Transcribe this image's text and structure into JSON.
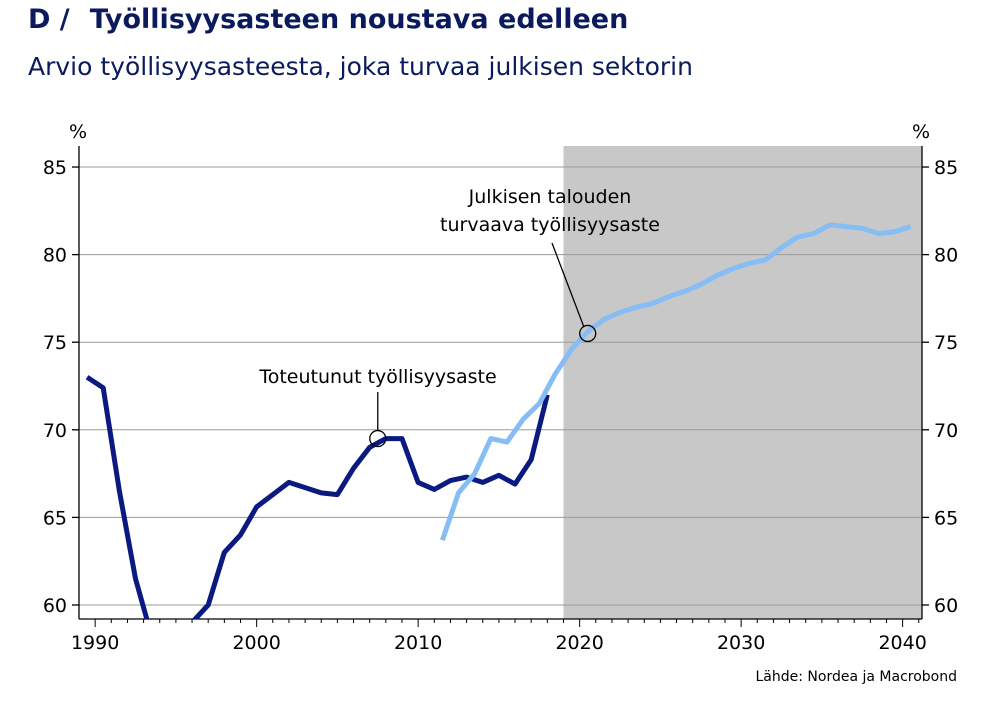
{
  "header": {
    "prefix": "D /",
    "title": "Työllisyysasteen noustava edelleen",
    "subtitle": "Arvio työllisyysasteesta, joka turvaa julkisen sektorin"
  },
  "source": "Lähde: Nordea ja Macrobond",
  "chart_data": {
    "type": "line",
    "ylabel_left": "%",
    "ylabel_right": "%",
    "ylim": [
      59.2,
      86.2
    ],
    "xlim": [
      1989,
      2041.2
    ],
    "y_ticks": [
      60,
      65,
      70,
      75,
      80,
      85
    ],
    "x_ticks": [
      1990,
      2000,
      2010,
      2020,
      2030,
      2040
    ],
    "grid": true,
    "forecast_shading": {
      "from": 2019,
      "to": 2041.2,
      "color": "#c8c8c8"
    },
    "series": [
      {
        "color": "#0a1a80",
        "x": [
          1989.5,
          1990.5,
          1991.5,
          1992.5,
          1993.5,
          1994,
          1995,
          1996,
          1997,
          1998,
          1999,
          2000,
          2001,
          2002,
          2003,
          2004,
          2005,
          2006,
          2007,
          2008,
          2009,
          2010,
          2011,
          2012,
          2013,
          2014,
          2015,
          2016,
          2017,
          2018
        ],
        "y": [
          73.0,
          72.4,
          66.5,
          61.5,
          58.2,
          58.0,
          58.9,
          59.0,
          60.0,
          63.0,
          64.0,
          65.6,
          66.3,
          67.0,
          66.7,
          66.4,
          66.3,
          67.8,
          69.0,
          69.5,
          69.5,
          67.0,
          66.6,
          67.1,
          67.3,
          67.0,
          67.4,
          66.9,
          68.3,
          72.0
        ]
      },
      {
        "color": "#86bdf5",
        "x": [
          2011.5,
          2012.5,
          2013.5,
          2014.5,
          2015.5,
          2016.5,
          2017.5,
          2018.5,
          2019.5,
          2020.5,
          2021.5,
          2022.5,
          2023.5,
          2024.5,
          2025.5,
          2026.5,
          2027.5,
          2028.5,
          2029.5,
          2030.5,
          2031.5,
          2032.5,
          2033.5,
          2034.5,
          2035.5,
          2036.5,
          2037.5,
          2038.5,
          2039.5,
          2040.5
        ],
        "y": [
          63.7,
          66.4,
          67.5,
          69.5,
          69.3,
          70.6,
          71.5,
          73.2,
          74.6,
          75.6,
          76.3,
          76.7,
          77.0,
          77.2,
          77.6,
          77.9,
          78.3,
          78.8,
          79.2,
          79.5,
          79.7,
          80.4,
          81.0,
          81.2,
          81.7,
          81.6,
          81.5,
          81.2,
          81.3,
          81.6
        ]
      }
    ],
    "annotations": [
      {
        "lines": [
          "Toteutunut työllisyysaste"
        ],
        "x": 2007.5,
        "y": 69.5
      },
      {
        "lines": [
          "Julkisen talouden",
          "turvaava työllisyysaste"
        ],
        "x": 2020.5,
        "y": 75.5
      }
    ]
  }
}
